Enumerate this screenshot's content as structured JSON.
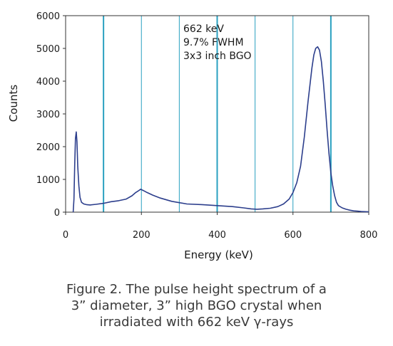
{
  "chart_data": {
    "type": "line",
    "xlabel": "Energy (keV)",
    "ylabel": "Counts",
    "xlim": [
      0,
      800
    ],
    "ylim": [
      0,
      6000
    ],
    "xticks": [
      "0",
      "200",
      "400",
      "600",
      "800"
    ],
    "yticks": [
      "0",
      "1000",
      "2000",
      "3000",
      "4000",
      "5000",
      "6000"
    ],
    "grid": "vertical lines every 100 keV",
    "annotations": [
      "662 keV",
      "9.7% FWHM",
      "3x3 inch BGO"
    ],
    "series": [
      {
        "color": "#2c3e8c",
        "x": [
          20,
          22,
          24,
          26,
          28,
          30,
          32,
          35,
          38,
          42,
          48,
          55,
          65,
          80,
          100,
          120,
          140,
          160,
          175,
          185,
          192,
          198,
          205,
          215,
          230,
          250,
          280,
          320,
          360,
          400,
          440,
          470,
          490,
          505,
          520,
          540,
          560,
          575,
          590,
          600,
          610,
          620,
          630,
          640,
          650,
          655,
          660,
          665,
          670,
          675,
          680,
          685,
          690,
          695,
          700,
          705,
          710,
          715,
          720,
          730,
          740,
          750,
          760,
          770,
          780,
          790,
          800
        ],
        "y": [
          0,
          400,
          1500,
          2250,
          2450,
          2150,
          1400,
          800,
          450,
          300,
          250,
          230,
          220,
          240,
          270,
          320,
          350,
          400,
          500,
          600,
          650,
          700,
          660,
          600,
          520,
          430,
          330,
          250,
          230,
          200,
          170,
          130,
          100,
          90,
          100,
          120,
          170,
          250,
          400,
          600,
          900,
          1400,
          2300,
          3400,
          4400,
          4800,
          5000,
          5050,
          4950,
          4600,
          4000,
          3300,
          2500,
          1800,
          1200,
          800,
          500,
          300,
          200,
          130,
          90,
          60,
          40,
          30,
          20,
          15,
          10
        ]
      }
    ]
  },
  "caption": {
    "line1": "Figure 2. The pulse height spectrum of a",
    "line2": "3” diameter, 3” high BGO crystal when",
    "line3": "irradiated with 662 keV γ-rays"
  }
}
